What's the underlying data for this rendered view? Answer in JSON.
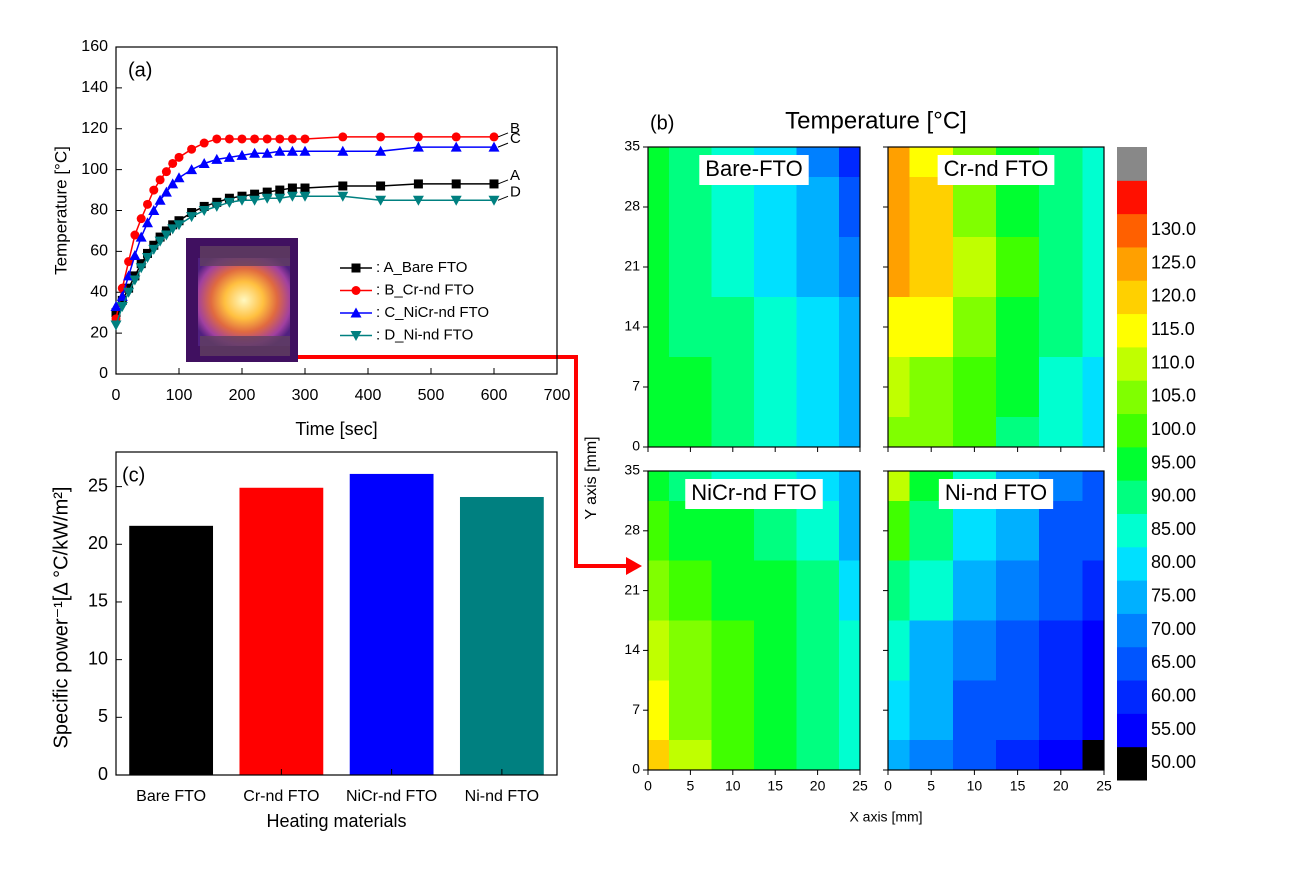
{
  "chart_data": [
    {
      "type": "line",
      "label": "(a)",
      "xlabel": "Time [sec]",
      "ylabel": "Temperature [°C]",
      "xlim": [
        0,
        700
      ],
      "ylim": [
        0,
        160
      ],
      "xticks": [
        0,
        100,
        200,
        300,
        400,
        500,
        600,
        700
      ],
      "yticks": [
        0,
        20,
        40,
        60,
        80,
        100,
        120,
        140,
        160
      ],
      "x": [
        0,
        10,
        20,
        30,
        40,
        50,
        60,
        70,
        80,
        90,
        100,
        120,
        140,
        160,
        180,
        200,
        220,
        240,
        260,
        280,
        300,
        360,
        420,
        480,
        540,
        600
      ],
      "series": [
        {
          "name": ": A_Bare FTO",
          "end_label": "A",
          "color": "#000000",
          "marker": "square",
          "values": [
            30,
            36,
            42,
            48,
            54,
            59,
            63,
            67,
            70,
            73,
            75,
            79,
            82,
            84,
            86,
            87,
            88,
            89,
            90,
            91,
            91,
            92,
            92,
            93,
            93,
            93
          ]
        },
        {
          "name": ": B_Cr-nd FTO",
          "end_label": "B",
          "color": "#ff0000",
          "marker": "circle",
          "values": [
            27,
            42,
            55,
            68,
            76,
            83,
            90,
            95,
            99,
            103,
            106,
            110,
            113,
            115,
            115,
            115,
            115,
            115,
            115,
            115,
            115,
            116,
            116,
            116,
            116,
            116
          ]
        },
        {
          "name": ": C_NiCr-nd FTO",
          "end_label": "C",
          "color": "#0000ff",
          "marker": "triangle-up",
          "values": [
            33,
            38,
            48,
            58,
            67,
            74,
            80,
            85,
            89,
            93,
            96,
            100,
            103,
            105,
            106,
            107,
            108,
            108,
            109,
            109,
            109,
            109,
            109,
            111,
            111,
            111
          ]
        },
        {
          "name": ": D_Ni-nd FTO",
          "end_label": "D",
          "color": "#008080",
          "marker": "triangle-down",
          "values": [
            24,
            33,
            40,
            46,
            52,
            57,
            61,
            65,
            68,
            71,
            73,
            77,
            80,
            82,
            84,
            85,
            85,
            86,
            86,
            87,
            87,
            87,
            85,
            85,
            85,
            85
          ]
        }
      ]
    },
    {
      "type": "contour",
      "label": "(b)",
      "title": "Temperature [°C]",
      "xlabel": "X axis [mm]",
      "ylabel": "Y axis [mm]",
      "xlim": [
        0,
        25
      ],
      "ylim": [
        0,
        35
      ],
      "xticks": [
        0,
        5,
        10,
        15,
        20,
        25
      ],
      "yticks": [
        0,
        7,
        14,
        21,
        28,
        35
      ],
      "x": [
        0,
        5,
        10,
        15,
        20,
        25
      ],
      "y": [
        0,
        7,
        14,
        21,
        28,
        35
      ],
      "panels": [
        {
          "name": "Bare-FTO",
          "z": [
            [
              92,
              90,
              86,
              80,
              76,
              72
            ],
            [
              92,
              90,
              86,
              81,
              76,
              72
            ],
            [
              90,
              88,
              85,
              80,
              75,
              70
            ],
            [
              90,
              88,
              84,
              79,
              74,
              68
            ],
            [
              90,
              87,
              83,
              78,
              72,
              64
            ],
            [
              90,
              86,
              82,
              76,
              68,
              58
            ]
          ]
        },
        {
          "name": "Cr-nd FTO",
          "z": [
            [
              104,
              100,
              95,
              88,
              82,
              76
            ],
            [
              108,
              104,
              98,
              91,
              84,
              78
            ],
            [
              114,
              110,
              102,
              94,
              86,
              80
            ],
            [
              120,
              116,
              106,
              96,
              88,
              82
            ],
            [
              122,
              116,
              104,
              94,
              87,
              82
            ],
            [
              120,
              112,
              100,
              92,
              86,
              82
            ]
          ]
        },
        {
          "name": "NiCr-nd FTO",
          "z": [
            [
              118,
              108,
              98,
              92,
              88,
              84
            ],
            [
              112,
              104,
              96,
              92,
              88,
              84
            ],
            [
              106,
              100,
              95,
              92,
              88,
              82
            ],
            [
              100,
              96,
              94,
              92,
              86,
              78
            ],
            [
              96,
              93,
              90,
              86,
              80,
              74
            ],
            [
              90,
              88,
              84,
              80,
              76,
              70
            ]
          ]
        },
        {
          "name": "Ni-nd FTO",
          "z": [
            [
              72,
              66,
              62,
              58,
              52,
              46
            ],
            [
              76,
              70,
              64,
              60,
              56,
              50
            ],
            [
              82,
              74,
              68,
              62,
              58,
              54
            ],
            [
              88,
              80,
              72,
              66,
              60,
              56
            ],
            [
              96,
              86,
              78,
              70,
              64,
              60
            ],
            [
              108,
              92,
              82,
              74,
              68,
              62
            ]
          ]
        }
      ],
      "colorbar": {
        "levels": [
          {
            "value": 50,
            "label": "50.00"
          },
          {
            "value": 55,
            "label": "55.00"
          },
          {
            "value": 60,
            "label": "60.00"
          },
          {
            "value": 65,
            "label": "65.00"
          },
          {
            "value": 70,
            "label": "70.00"
          },
          {
            "value": 75,
            "label": "75.00"
          },
          {
            "value": 80,
            "label": "80.00"
          },
          {
            "value": 85,
            "label": "85.00"
          },
          {
            "value": 90,
            "label": "90.00"
          },
          {
            "value": 95,
            "label": "95.00"
          },
          {
            "value": 100,
            "label": "100.0"
          },
          {
            "value": 105,
            "label": "105.0"
          },
          {
            "value": 110,
            "label": "110.0"
          },
          {
            "value": 115,
            "label": "115.0"
          },
          {
            "value": 120,
            "label": "120.0"
          },
          {
            "value": 125,
            "label": "125.0"
          },
          {
            "value": 130,
            "label": "130.0"
          }
        ],
        "colors": [
          "#000000",
          "#0000ff",
          "#0028ff",
          "#0055ff",
          "#0080ff",
          "#00b0ff",
          "#00e0ff",
          "#00ffd0",
          "#00ff80",
          "#00ff30",
          "#40ff00",
          "#80ff00",
          "#c0ff00",
          "#ffff00",
          "#ffd000",
          "#ffa000",
          "#ff6000",
          "#ff1000",
          "#888888"
        ]
      }
    },
    {
      "type": "bar",
      "label": "(c)",
      "xlabel": "Heating materials",
      "ylabel": "Specific power⁻¹[Δ °C/kW/m²]",
      "ylim": [
        0,
        28
      ],
      "yticks": [
        0,
        5,
        10,
        15,
        20,
        25
      ],
      "categories": [
        "Bare FTO",
        "Cr-nd FTO",
        "NiCr-nd FTO",
        "Ni-nd FTO"
      ],
      "values": [
        21.6,
        24.9,
        26.1,
        24.1
      ],
      "colors": [
        "#000000",
        "#ff0000",
        "#0000ff",
        "#008080"
      ]
    }
  ]
}
